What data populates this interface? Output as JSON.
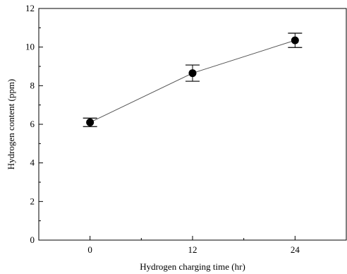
{
  "chart_data": {
    "type": "scatter",
    "xlabel": "Hydrogen charging time (hr)",
    "ylabel": "Hydrogen content (ppm)",
    "xlim": [
      -6,
      30
    ],
    "ylim": [
      0,
      12
    ],
    "x_ticks": [
      0,
      12,
      24
    ],
    "y_ticks": [
      0,
      2,
      4,
      6,
      8,
      10,
      12
    ],
    "grid": false,
    "legend": "none",
    "series": [
      {
        "x": [
          0,
          12,
          24
        ],
        "y": [
          6.1,
          8.65,
          10.35
        ],
        "error": [
          0.22,
          0.42,
          0.37
        ],
        "marker": "filled-circle",
        "line": "connected"
      }
    ]
  }
}
